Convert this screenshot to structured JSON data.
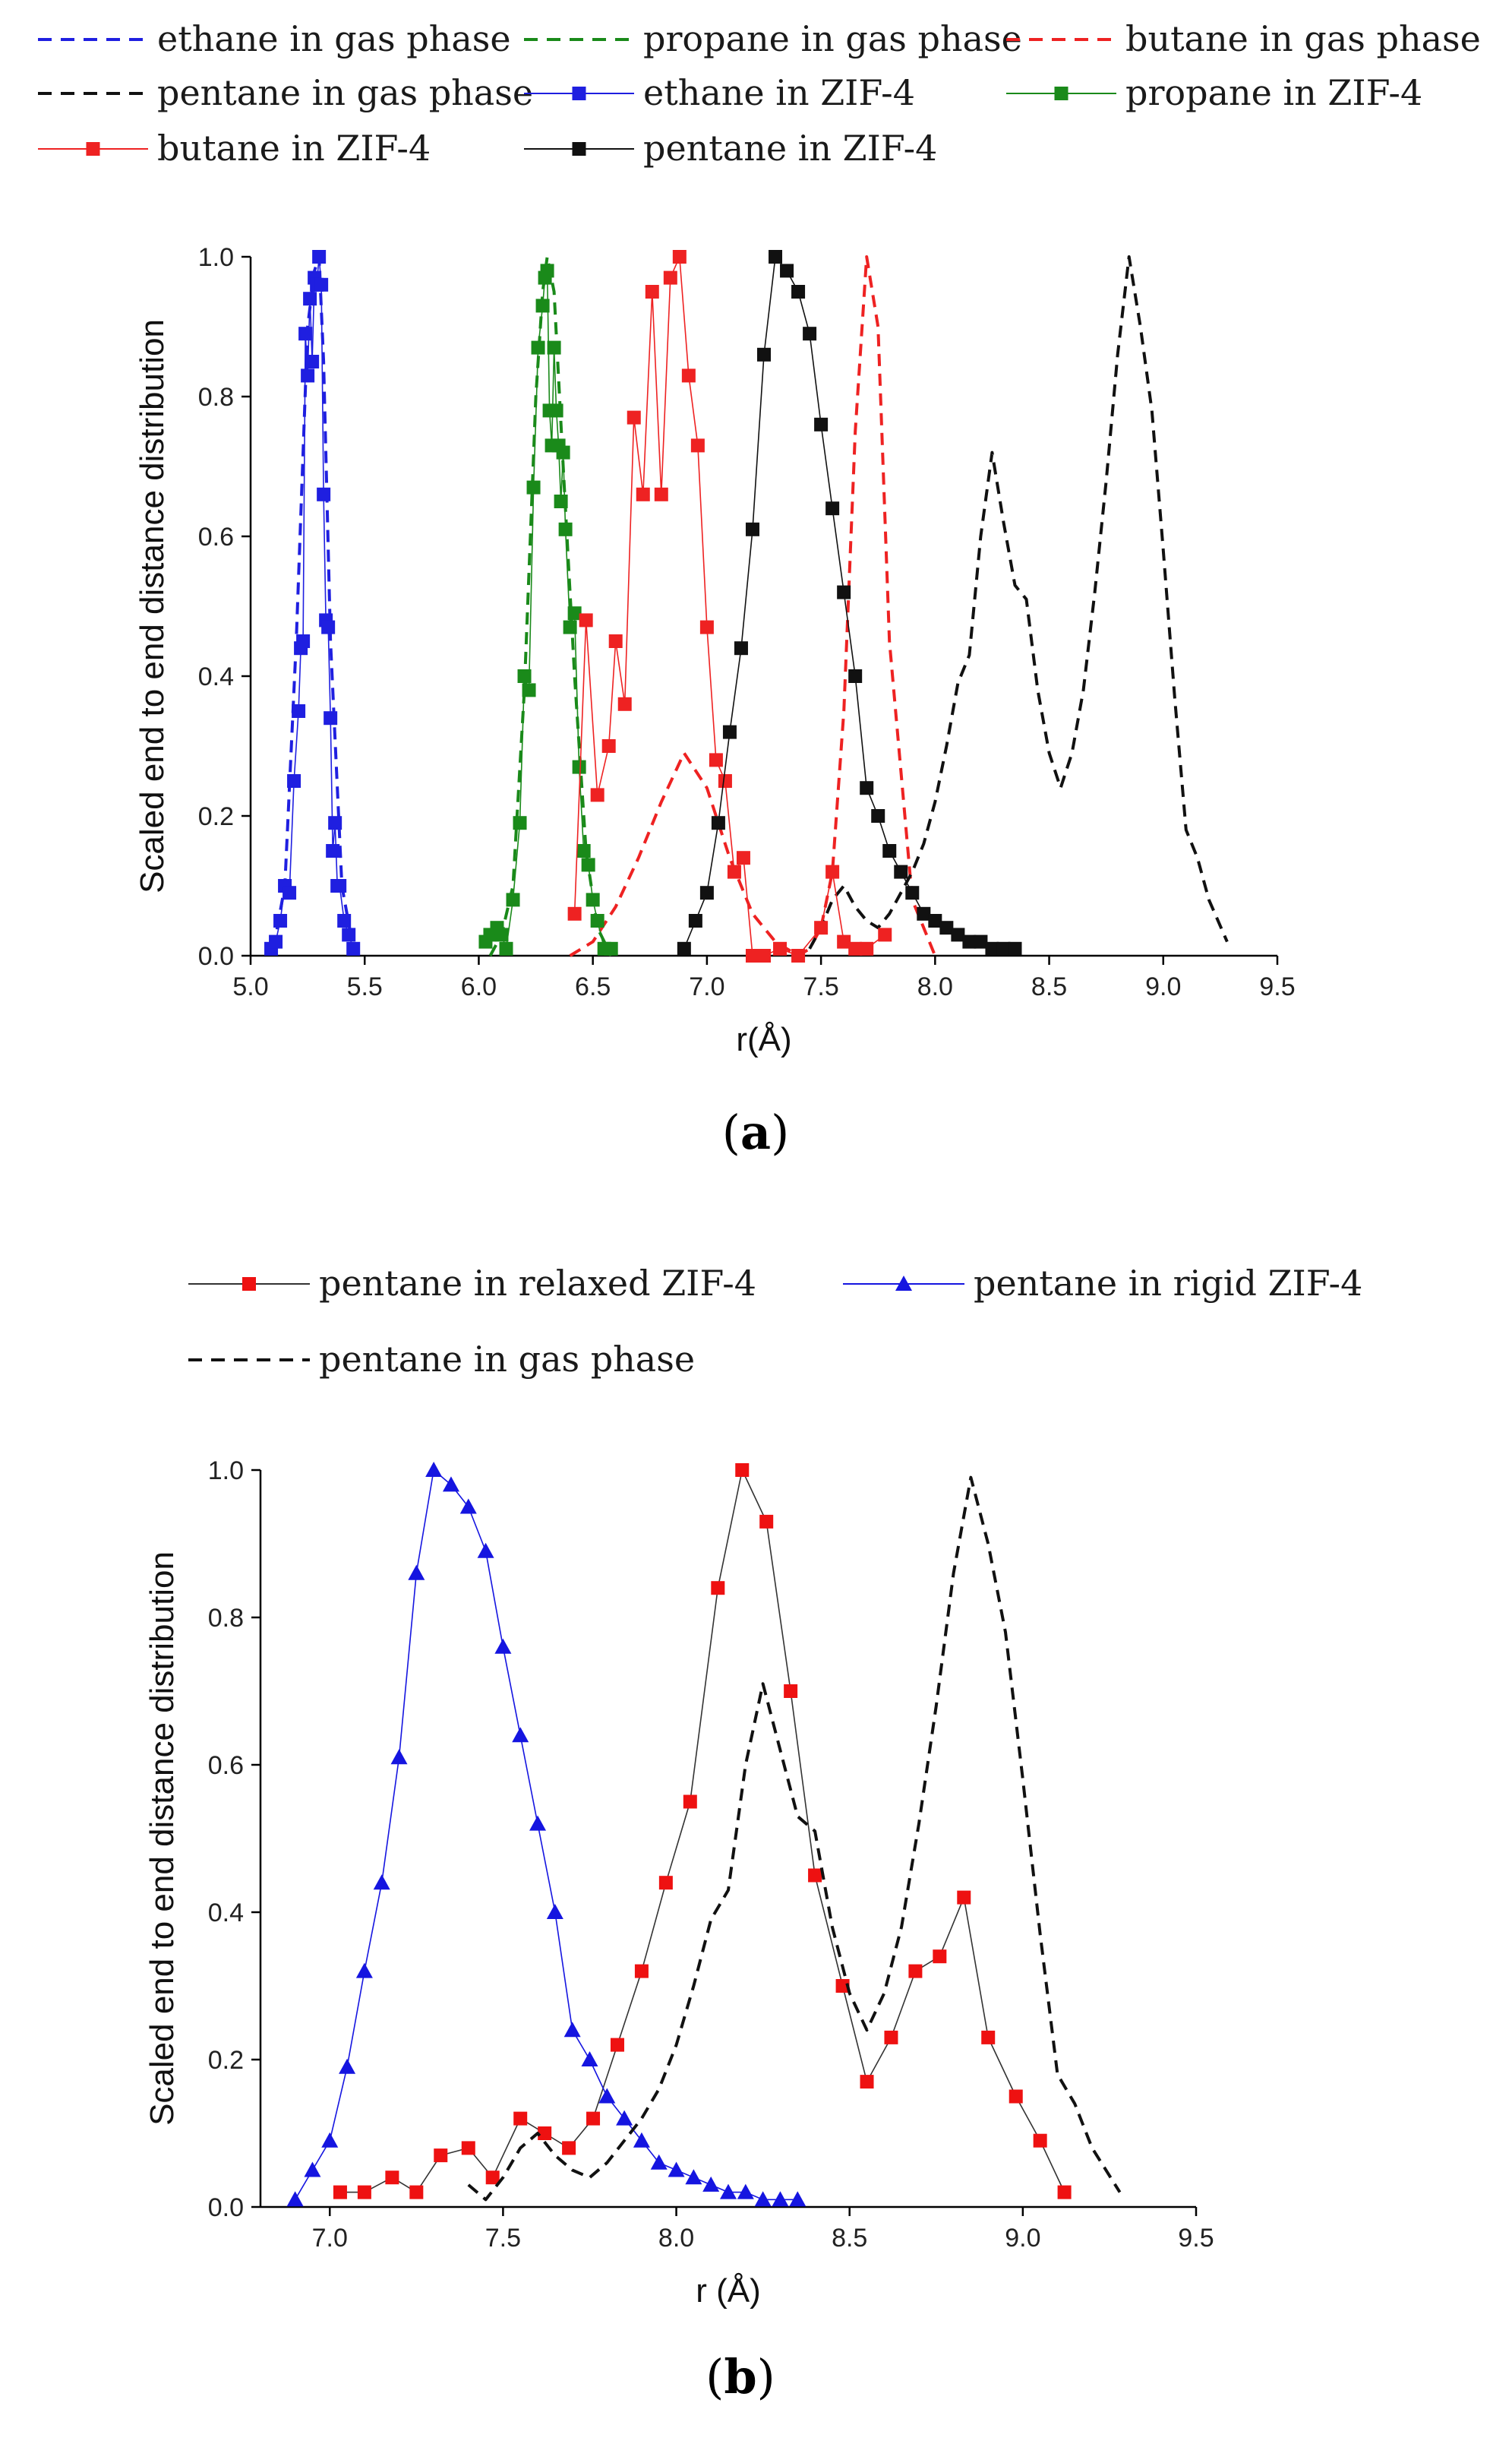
{
  "chart_data": [
    {
      "panel": "a",
      "type": "line",
      "caption": {
        "open": "(",
        "label": "a",
        "close": ")"
      },
      "xlabel": "r(Å)",
      "ylabel": "Scaled end to end distance distribution",
      "xlim": [
        5.0,
        9.5
      ],
      "ylim": [
        0.0,
        1.0
      ],
      "xticks": [
        5.0,
        5.5,
        6.0,
        6.5,
        7.0,
        7.5,
        8.0,
        8.5,
        9.0,
        9.5
      ],
      "yticks": [
        0.0,
        0.2,
        0.4,
        0.6,
        0.8,
        1.0
      ],
      "legend_layout": "three-columns-top",
      "series": [
        {
          "name": "ethane in gas phase",
          "color": "#1f1fe0",
          "style": "dashed",
          "marker": "none",
          "x": [
            5.1,
            5.15,
            5.2,
            5.25,
            5.28,
            5.3,
            5.32,
            5.35,
            5.4,
            5.45
          ],
          "y": [
            0.01,
            0.1,
            0.45,
            0.9,
            0.98,
            1.0,
            0.85,
            0.45,
            0.1,
            0.01
          ]
        },
        {
          "name": "propane in gas phase",
          "color": "#1a8a1a",
          "style": "dashed",
          "marker": "none",
          "x": [
            6.05,
            6.1,
            6.15,
            6.2,
            6.25,
            6.28,
            6.3,
            6.33,
            6.37,
            6.42,
            6.47,
            6.52,
            6.58
          ],
          "y": [
            0.0,
            0.03,
            0.1,
            0.38,
            0.8,
            0.95,
            1.0,
            0.95,
            0.7,
            0.4,
            0.15,
            0.04,
            0.0
          ]
        },
        {
          "name": "butane in gas phase",
          "color": "#ee2222",
          "style": "dashed",
          "marker": "none",
          "x": [
            6.4,
            6.5,
            6.6,
            6.7,
            6.8,
            6.9,
            7.0,
            7.1,
            7.2,
            7.3,
            7.4,
            7.45,
            7.5,
            7.55,
            7.6,
            7.65,
            7.7,
            7.75,
            7.8,
            7.9,
            8.0
          ],
          "y": [
            0.0,
            0.02,
            0.07,
            0.14,
            0.22,
            0.29,
            0.24,
            0.14,
            0.06,
            0.02,
            0.0,
            0.01,
            0.04,
            0.12,
            0.35,
            0.75,
            1.0,
            0.9,
            0.45,
            0.08,
            0.0
          ]
        },
        {
          "name": "pentane in gas phase",
          "color": "#111111",
          "style": "dashed",
          "marker": "none",
          "x": [
            7.45,
            7.5,
            7.55,
            7.6,
            7.65,
            7.7,
            7.75,
            7.8,
            7.85,
            7.9,
            7.95,
            8.0,
            8.05,
            8.1,
            8.15,
            8.2,
            8.25,
            8.3,
            8.35,
            8.4,
            8.45,
            8.5,
            8.55,
            8.6,
            8.65,
            8.7,
            8.75,
            8.8,
            8.85,
            8.9,
            8.95,
            9.0,
            9.05,
            9.1,
            9.15,
            9.2,
            9.28
          ],
          "y": [
            0.01,
            0.04,
            0.08,
            0.1,
            0.07,
            0.05,
            0.04,
            0.06,
            0.09,
            0.12,
            0.16,
            0.22,
            0.3,
            0.39,
            0.43,
            0.6,
            0.72,
            0.62,
            0.53,
            0.51,
            0.38,
            0.29,
            0.24,
            0.29,
            0.38,
            0.52,
            0.68,
            0.86,
            1.0,
            0.9,
            0.78,
            0.58,
            0.37,
            0.18,
            0.14,
            0.08,
            0.02
          ]
        },
        {
          "name": "ethane in ZIF-4",
          "color": "#1f1fe0",
          "style": "solid",
          "marker": "square",
          "x": [
            5.09,
            5.11,
            5.13,
            5.15,
            5.17,
            5.19,
            5.21,
            5.22,
            5.23,
            5.24,
            5.25,
            5.26,
            5.27,
            5.28,
            5.29,
            5.3,
            5.31,
            5.32,
            5.33,
            5.34,
            5.35,
            5.36,
            5.37,
            5.38,
            5.39,
            5.41,
            5.43,
            5.45
          ],
          "y": [
            0.01,
            0.02,
            0.05,
            0.1,
            0.09,
            0.25,
            0.35,
            0.44,
            0.45,
            0.89,
            0.83,
            0.94,
            0.85,
            0.97,
            0.96,
            1.0,
            0.96,
            0.66,
            0.48,
            0.47,
            0.34,
            0.15,
            0.19,
            0.1,
            0.1,
            0.05,
            0.03,
            0.01
          ]
        },
        {
          "name": "propane in ZIF-4",
          "color": "#1a8a1a",
          "style": "solid",
          "marker": "square",
          "x": [
            6.03,
            6.05,
            6.08,
            6.1,
            6.12,
            6.15,
            6.18,
            6.2,
            6.22,
            6.24,
            6.26,
            6.28,
            6.29,
            6.3,
            6.31,
            6.32,
            6.33,
            6.34,
            6.35,
            6.36,
            6.37,
            6.38,
            6.4,
            6.42,
            6.44,
            6.46,
            6.48,
            6.5,
            6.52,
            6.55,
            6.58
          ],
          "y": [
            0.02,
            0.03,
            0.04,
            0.03,
            0.01,
            0.08,
            0.19,
            0.4,
            0.38,
            0.67,
            0.87,
            0.93,
            0.97,
            0.98,
            0.78,
            0.73,
            0.87,
            0.78,
            0.73,
            0.65,
            0.72,
            0.61,
            0.47,
            0.49,
            0.27,
            0.15,
            0.13,
            0.08,
            0.05,
            0.01,
            0.01
          ]
        },
        {
          "name": "butane in ZIF-4",
          "color": "#ee2222",
          "style": "solid",
          "marker": "square",
          "x": [
            6.42,
            6.47,
            6.52,
            6.57,
            6.6,
            6.64,
            6.68,
            6.72,
            6.76,
            6.8,
            6.84,
            6.88,
            6.92,
            6.96,
            7.0,
            7.04,
            7.08,
            7.12,
            7.16,
            7.2,
            7.25,
            7.32,
            7.4,
            7.5,
            7.55,
            7.6,
            7.65,
            7.7,
            7.78
          ],
          "y": [
            0.06,
            0.48,
            0.23,
            0.3,
            0.45,
            0.36,
            0.77,
            0.66,
            0.95,
            0.66,
            0.97,
            1.0,
            0.83,
            0.73,
            0.47,
            0.28,
            0.25,
            0.12,
            0.14,
            0.0,
            0.0,
            0.01,
            0.0,
            0.04,
            0.12,
            0.02,
            0.01,
            0.01,
            0.03
          ]
        },
        {
          "name": "pentane in ZIF-4",
          "color": "#111111",
          "style": "solid",
          "marker": "square",
          "x": [
            6.9,
            6.95,
            7.0,
            7.05,
            7.1,
            7.15,
            7.2,
            7.25,
            7.3,
            7.35,
            7.4,
            7.45,
            7.5,
            7.55,
            7.6,
            7.65,
            7.7,
            7.75,
            7.8,
            7.85,
            7.9,
            7.95,
            8.0,
            8.05,
            8.1,
            8.15,
            8.2,
            8.25,
            8.3,
            8.35
          ],
          "y": [
            0.01,
            0.05,
            0.09,
            0.19,
            0.32,
            0.44,
            0.61,
            0.86,
            1.0,
            0.98,
            0.95,
            0.89,
            0.76,
            0.64,
            0.52,
            0.4,
            0.24,
            0.2,
            0.15,
            0.12,
            0.09,
            0.06,
            0.05,
            0.04,
            0.03,
            0.02,
            0.02,
            0.01,
            0.01,
            0.01
          ]
        }
      ]
    },
    {
      "panel": "b",
      "type": "line",
      "caption": {
        "open": "(",
        "label": "b",
        "close": ")"
      },
      "xlabel": "r (Å)",
      "ylabel": "Scaled end to end distance distribution",
      "xlim": [
        6.8,
        9.5
      ],
      "ylim": [
        0.0,
        1.0
      ],
      "xticks": [
        7.0,
        7.5,
        8.0,
        8.5,
        9.0,
        9.5
      ],
      "yticks": [
        0.0,
        0.2,
        0.4,
        0.6,
        0.8,
        1.0
      ],
      "legend_layout": "two-columns-top",
      "series": [
        {
          "name": "pentane in relaxed ZIF-4",
          "color": "#ee1111",
          "line_color": "#333333",
          "style": "solid",
          "marker": "square",
          "x": [
            7.03,
            7.1,
            7.18,
            7.25,
            7.32,
            7.4,
            7.47,
            7.55,
            7.62,
            7.69,
            7.76,
            7.83,
            7.9,
            7.97,
            8.04,
            8.12,
            8.19,
            8.26,
            8.33,
            8.4,
            8.48,
            8.55,
            8.62,
            8.69,
            8.76,
            8.83,
            8.9,
            8.98,
            9.05,
            9.12
          ],
          "y": [
            0.02,
            0.02,
            0.04,
            0.02,
            0.07,
            0.08,
            0.04,
            0.12,
            0.1,
            0.08,
            0.12,
            0.22,
            0.32,
            0.44,
            0.55,
            0.84,
            1.0,
            0.93,
            0.7,
            0.45,
            0.3,
            0.17,
            0.23,
            0.32,
            0.34,
            0.42,
            0.23,
            0.15,
            0.09,
            0.02
          ]
        },
        {
          "name": "pentane in rigid ZIF-4",
          "color": "#1515e0",
          "style": "solid",
          "marker": "triangle",
          "x": [
            6.9,
            6.95,
            7.0,
            7.05,
            7.1,
            7.15,
            7.2,
            7.25,
            7.3,
            7.35,
            7.4,
            7.45,
            7.5,
            7.55,
            7.6,
            7.65,
            7.7,
            7.75,
            7.8,
            7.85,
            7.9,
            7.95,
            8.0,
            8.05,
            8.1,
            8.15,
            8.2,
            8.25,
            8.3,
            8.35
          ],
          "y": [
            0.01,
            0.05,
            0.09,
            0.19,
            0.32,
            0.44,
            0.61,
            0.86,
            1.0,
            0.98,
            0.95,
            0.89,
            0.76,
            0.64,
            0.52,
            0.4,
            0.24,
            0.2,
            0.15,
            0.12,
            0.09,
            0.06,
            0.05,
            0.04,
            0.03,
            0.02,
            0.02,
            0.01,
            0.01,
            0.01
          ]
        },
        {
          "name": "pentane in gas phase",
          "color": "#111111",
          "style": "dashed",
          "marker": "none",
          "x": [
            7.4,
            7.45,
            7.5,
            7.55,
            7.6,
            7.65,
            7.7,
            7.75,
            7.8,
            7.85,
            7.9,
            7.95,
            8.0,
            8.05,
            8.1,
            8.15,
            8.2,
            8.25,
            8.3,
            8.35,
            8.4,
            8.45,
            8.5,
            8.55,
            8.6,
            8.65,
            8.7,
            8.75,
            8.8,
            8.85,
            8.9,
            8.95,
            9.0,
            9.05,
            9.1,
            9.15,
            9.2,
            9.28
          ],
          "y": [
            0.03,
            0.01,
            0.04,
            0.08,
            0.1,
            0.07,
            0.05,
            0.04,
            0.06,
            0.09,
            0.12,
            0.16,
            0.22,
            0.3,
            0.39,
            0.43,
            0.6,
            0.71,
            0.62,
            0.53,
            0.51,
            0.38,
            0.29,
            0.24,
            0.29,
            0.38,
            0.52,
            0.68,
            0.86,
            0.99,
            0.9,
            0.78,
            0.58,
            0.37,
            0.18,
            0.14,
            0.08,
            0.02
          ]
        }
      ]
    }
  ]
}
